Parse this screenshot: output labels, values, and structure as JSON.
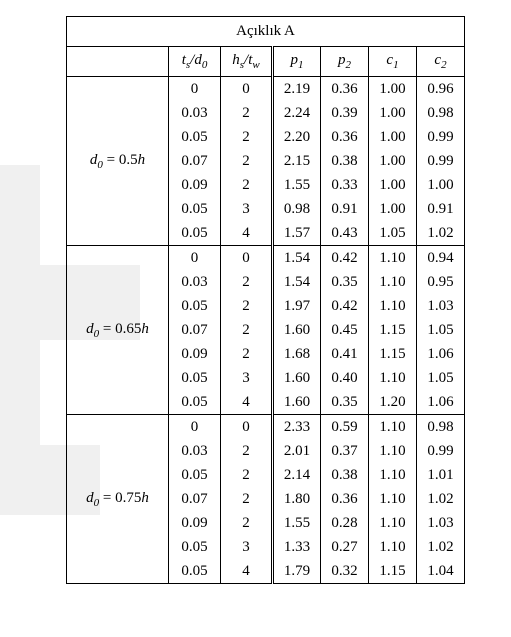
{
  "table": {
    "title": "Açıklık A",
    "headers": {
      "col_label": "",
      "ts_d0_html": "<span class='math'>t<span class='sub'>s</span></span>/<span class='math'>d</span><span class='sub'>0</span>",
      "hs_tw_html": "<span class='math'>h<span class='sub'>s</span></span>/<span class='math'>t<span class='sub'>w</span></span>",
      "p1_html": "<span class='math'>p</span><span class='sub'>1</span>",
      "p2_html": "<span class='math'>p</span><span class='sub'>2</span>",
      "c1_html": "<span class='math'>c</span><span class='sub'>1</span>",
      "c2_html": "<span class='math'>c</span><span class='sub'>2</span>"
    },
    "groups": [
      {
        "label_html": "<span class='math'>d</span><span class='sub'>0</span> <span class='eq'>=</span> 0.5<span class='math'>h</span>",
        "rows": [
          {
            "ts": "0",
            "hs": "0",
            "p1": "2.19",
            "p2": "0.36",
            "c1": "1.00",
            "c2": "0.96"
          },
          {
            "ts": "0.03",
            "hs": "2",
            "p1": "2.24",
            "p2": "0.39",
            "c1": "1.00",
            "c2": "0.98"
          },
          {
            "ts": "0.05",
            "hs": "2",
            "p1": "2.20",
            "p2": "0.36",
            "c1": "1.00",
            "c2": "0.99"
          },
          {
            "ts": "0.07",
            "hs": "2",
            "p1": "2.15",
            "p2": "0.38",
            "c1": "1.00",
            "c2": "0.99"
          },
          {
            "ts": "0.09",
            "hs": "2",
            "p1": "1.55",
            "p2": "0.33",
            "c1": "1.00",
            "c2": "1.00"
          },
          {
            "ts": "0.05",
            "hs": "3",
            "p1": "0.98",
            "p2": "0.91",
            "c1": "1.00",
            "c2": "0.91"
          },
          {
            "ts": "0.05",
            "hs": "4",
            "p1": "1.57",
            "p2": "0.43",
            "c1": "1.05",
            "c2": "1.02"
          }
        ]
      },
      {
        "label_html": "<span class='math'>d</span><span class='sub'>0</span> <span class='eq'>=</span> 0.65<span class='math'>h</span>",
        "rows": [
          {
            "ts": "0",
            "hs": "0",
            "p1": "1.54",
            "p2": "0.42",
            "c1": "1.10",
            "c2": "0.94"
          },
          {
            "ts": "0.03",
            "hs": "2",
            "p1": "1.54",
            "p2": "0.35",
            "c1": "1.10",
            "c2": "0.95"
          },
          {
            "ts": "0.05",
            "hs": "2",
            "p1": "1.97",
            "p2": "0.42",
            "c1": "1.10",
            "c2": "1.03"
          },
          {
            "ts": "0.07",
            "hs": "2",
            "p1": "1.60",
            "p2": "0.45",
            "c1": "1.15",
            "c2": "1.05"
          },
          {
            "ts": "0.09",
            "hs": "2",
            "p1": "1.68",
            "p2": "0.41",
            "c1": "1.15",
            "c2": "1.06"
          },
          {
            "ts": "0.05",
            "hs": "3",
            "p1": "1.60",
            "p2": "0.40",
            "c1": "1.10",
            "c2": "1.05"
          },
          {
            "ts": "0.05",
            "hs": "4",
            "p1": "1.60",
            "p2": "0.35",
            "c1": "1.20",
            "c2": "1.06"
          }
        ]
      },
      {
        "label_html": "<span class='math'>d</span><span class='sub'>0</span> <span class='eq'>=</span> 0.75<span class='math'>h</span>",
        "rows": [
          {
            "ts": "0",
            "hs": "0",
            "p1": "2.33",
            "p2": "0.59",
            "c1": "1.10",
            "c2": "0.98"
          },
          {
            "ts": "0.03",
            "hs": "2",
            "p1": "2.01",
            "p2": "0.37",
            "c1": "1.10",
            "c2": "0.99"
          },
          {
            "ts": "0.05",
            "hs": "2",
            "p1": "2.14",
            "p2": "0.38",
            "c1": "1.10",
            "c2": "1.01"
          },
          {
            "ts": "0.07",
            "hs": "2",
            "p1": "1.80",
            "p2": "0.36",
            "c1": "1.10",
            "c2": "1.02"
          },
          {
            "ts": "0.09",
            "hs": "2",
            "p1": "1.55",
            "p2": "0.28",
            "c1": "1.10",
            "c2": "1.03"
          },
          {
            "ts": "0.05",
            "hs": "3",
            "p1": "1.33",
            "p2": "0.27",
            "c1": "1.10",
            "c2": "1.02"
          },
          {
            "ts": "0.05",
            "hs": "4",
            "p1": "1.79",
            "p2": "0.32",
            "c1": "1.15",
            "c2": "1.04"
          }
        ]
      }
    ],
    "column_widths": {
      "label": 102,
      "ts": 52,
      "hs": 52,
      "p": 48,
      "c": 48
    },
    "colors": {
      "border": "#000000",
      "background": "#ffffff",
      "watermark": "#e8e8e8"
    },
    "fontsize": 15,
    "sub_fontsize": 11
  }
}
